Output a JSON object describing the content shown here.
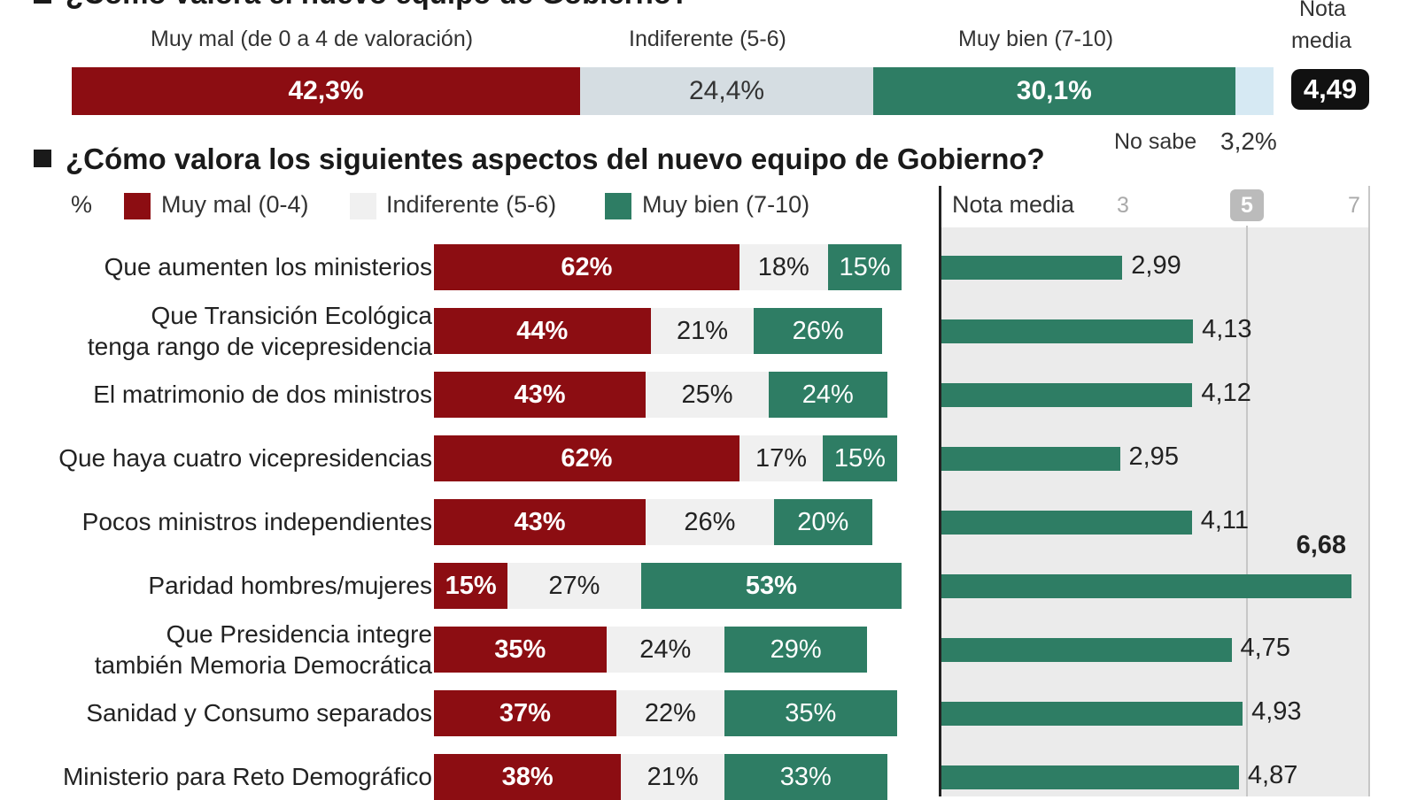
{
  "colors": {
    "muy_mal": "#8c0d12",
    "indiferente": "#d5dde2",
    "indiferente_rows": "#f0f0f0",
    "muy_bien": "#2e7d64",
    "no_sabe": "#d6e9f3",
    "panel_bg": "#ebebeb"
  },
  "top": {
    "title_partial": "¿Cómo valora el nuevo equipo de Gobierno?",
    "cap_bad": "Muy mal (de 0 a 4 de valoración)",
    "cap_neu": "Indiferente (5-6)",
    "cap_good": "Muy bien (7-10)",
    "nota_line1": "Nota",
    "nota_line2": "media",
    "nota_value": "4,49",
    "no_sabe_label": "No sabe",
    "no_sabe_value": "3,2%"
  },
  "second": {
    "title": "¿Cómo valora los siguientes aspectos del nuevo equipo de Gobierno?",
    "legend_pct": "%",
    "legend_bad": "Muy mal (0-4)",
    "legend_neu": "Indiferente (5-6)",
    "legend_good": "Muy bien (7-10)",
    "nota_media_label": "Nota media",
    "tick3": "3",
    "tick5": "5",
    "tick7": "7"
  },
  "chart_data": [
    {
      "type": "bar",
      "orientation": "horizontal-stacked",
      "title": "¿Cómo valora el nuevo equipo de Gobierno?",
      "series": [
        {
          "name": "Muy mal (de 0 a 4 de valoración)",
          "values": [
            42.3
          ],
          "labels": [
            "42,3%"
          ]
        },
        {
          "name": "Indiferente (5-6)",
          "values": [
            24.4
          ],
          "labels": [
            "24,4%"
          ]
        },
        {
          "name": "Muy bien (7-10)",
          "values": [
            30.1
          ],
          "labels": [
            "30,1%"
          ]
        },
        {
          "name": "No sabe",
          "values": [
            3.2
          ],
          "labels": [
            "3,2%"
          ]
        }
      ],
      "nota_media": 4.49
    },
    {
      "type": "bar",
      "orientation": "horizontal-stacked",
      "title": "¿Cómo valora los siguientes aspectos del nuevo equipo de Gobierno?",
      "unit": "%",
      "rows": [
        {
          "label": [
            "Que aumenten los ministerios"
          ],
          "bad": 62,
          "bad_label": "62%",
          "neu": 18,
          "neu_label": "18%",
          "good": 15,
          "good_label": "15%"
        },
        {
          "label": [
            "Que Transición Ecológica",
            "tenga rango de vicepresidencia"
          ],
          "bad": 44,
          "bad_label": "44%",
          "neu": 21,
          "neu_label": "21%",
          "good": 26,
          "good_label": "26%"
        },
        {
          "label": [
            "El matrimonio de dos ministros"
          ],
          "bad": 43,
          "bad_label": "43%",
          "neu": 25,
          "neu_label": "25%",
          "good": 24,
          "good_label": "24%"
        },
        {
          "label": [
            "Que haya cuatro vicepresidencias"
          ],
          "bad": 62,
          "bad_label": "62%",
          "neu": 17,
          "neu_label": "17%",
          "good": 15,
          "good_label": "15%"
        },
        {
          "label": [
            "Pocos ministros independientes"
          ],
          "bad": 43,
          "bad_label": "43%",
          "neu": 26,
          "neu_label": "26%",
          "good": 20,
          "good_label": "20%"
        },
        {
          "label": [
            "Paridad hombres/mujeres"
          ],
          "bad": 15,
          "bad_label": "15%",
          "neu": 27,
          "neu_label": "27%",
          "good": 53,
          "good_label": "53%"
        },
        {
          "label": [
            "Que Presidencia integre",
            "también Memoria Democrática"
          ],
          "bad": 35,
          "bad_label": "35%",
          "neu": 24,
          "neu_label": "24%",
          "good": 29,
          "good_label": "29%"
        },
        {
          "label": [
            "Sanidad y Consumo separados"
          ],
          "bad": 37,
          "bad_label": "37%",
          "neu": 22,
          "neu_label": "22%",
          "good": 35,
          "good_label": "35%"
        },
        {
          "label": [
            "Ministerio para Reto Demográfico"
          ],
          "bad": 38,
          "bad_label": "38%",
          "neu": 21,
          "neu_label": "21%",
          "good": 33,
          "good_label": "33%"
        }
      ]
    },
    {
      "type": "bar",
      "orientation": "horizontal",
      "title": "Nota media",
      "x_ticks": [
        3,
        5,
        7
      ],
      "xlim": [
        0,
        7
      ],
      "categories": [
        "Que aumenten los ministerios",
        "Que Transición Ecológica tenga rango de vicepresidencia",
        "El matrimonio de dos ministros",
        "Que haya cuatro vicepresidencias",
        "Pocos ministros independientes",
        "Paridad hombres/mujeres",
        "Que Presidencia integre también Memoria Democrática",
        "Sanidad y Consumo separados",
        "Ministerio para Reto Demográfico"
      ],
      "values": [
        2.99,
        4.13,
        4.12,
        2.95,
        4.11,
        6.68,
        4.75,
        4.93,
        4.87
      ],
      "value_labels": [
        "2,99",
        "4,13",
        "4,12",
        "2,95",
        "4,11",
        "6,68",
        "4,75",
        "4,93",
        "4,87"
      ]
    }
  ]
}
